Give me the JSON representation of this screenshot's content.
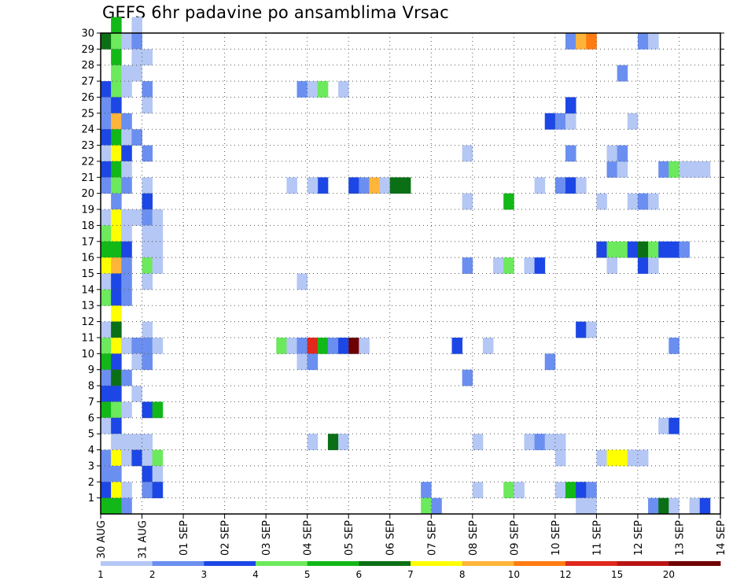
{
  "chart_data": {
    "type": "heatmap",
    "title": "GEFS 6hr padavine po ansamblima Vrsac",
    "xlabel": "",
    "ylabel": "",
    "y_range": [
      0,
      30
    ],
    "y_tick_labels": [
      "1",
      "2",
      "3",
      "4",
      "5",
      "6",
      "7",
      "8",
      "9",
      "10",
      "11",
      "12",
      "13",
      "14",
      "15",
      "16",
      "17",
      "18",
      "19",
      "20",
      "21",
      "22",
      "23",
      "24",
      "25",
      "26",
      "27",
      "28",
      "29",
      "30"
    ],
    "x_tick_labels": [
      "30 AUG",
      "31 AUG",
      "01 SEP",
      "02 SEP",
      "03 SEP",
      "04 SEP",
      "05 SEP",
      "06 SEP",
      "07 SEP",
      "08 SEP",
      "09 SEP",
      "10 SEP",
      "11 SEP",
      "12 SEP",
      "13 SEP",
      "14 SEP"
    ],
    "x_range_days": [
      0,
      15
    ],
    "grid": true,
    "legend": {
      "placement": "bottom",
      "boundaries": [
        "1",
        "2",
        "3",
        "4",
        "5",
        "6",
        "7",
        "8",
        "10",
        "12",
        "15",
        "20"
      ],
      "colors": [
        "#b4c7f5",
        "#6b8ff0",
        "#1c47e6",
        "#6ce95c",
        "#12b817",
        "#0b7015",
        "#ffff00",
        "#ffb43a",
        "#ff7c11",
        "#e0281c",
        "#b81414",
        "#6e0000"
      ]
    },
    "cells": [
      {
        "d": 0.25,
        "m": 30,
        "c": 4
      },
      {
        "d": 0.75,
        "m": 30,
        "c": 0
      },
      {
        "d": 0.0,
        "m": 29,
        "c": 5
      },
      {
        "d": 0.25,
        "m": 29,
        "c": 3
      },
      {
        "d": 0.5,
        "m": 29,
        "c": 0
      },
      {
        "d": 0.75,
        "m": 29,
        "c": 1
      },
      {
        "d": 0.25,
        "m": 28,
        "c": 4
      },
      {
        "d": 0.75,
        "m": 28,
        "c": 0
      },
      {
        "d": 1.0,
        "m": 28,
        "c": 0
      },
      {
        "d": 0.25,
        "m": 27,
        "c": 3
      },
      {
        "d": 0.5,
        "m": 27,
        "c": 0
      },
      {
        "d": 0.75,
        "m": 27,
        "c": 0
      },
      {
        "d": 0.0,
        "m": 26,
        "c": 2
      },
      {
        "d": 0.25,
        "m": 26,
        "c": 3
      },
      {
        "d": 0.5,
        "m": 26,
        "c": 0
      },
      {
        "d": 1.0,
        "m": 26,
        "c": 1
      },
      {
        "d": 0.0,
        "m": 25,
        "c": 1
      },
      {
        "d": 0.25,
        "m": 25,
        "c": 2
      },
      {
        "d": 1.0,
        "m": 25,
        "c": 0
      },
      {
        "d": 0.0,
        "m": 24,
        "c": 1
      },
      {
        "d": 0.25,
        "m": 24,
        "c": 7
      },
      {
        "d": 0.5,
        "m": 24,
        "c": 1
      },
      {
        "d": 0.0,
        "m": 23,
        "c": 2
      },
      {
        "d": 0.25,
        "m": 23,
        "c": 4
      },
      {
        "d": 0.5,
        "m": 23,
        "c": 0
      },
      {
        "d": 0.75,
        "m": 23,
        "c": 1
      },
      {
        "d": 0.0,
        "m": 22,
        "c": 0
      },
      {
        "d": 0.25,
        "m": 22,
        "c": 6
      },
      {
        "d": 0.5,
        "m": 22,
        "c": 2
      },
      {
        "d": 1.0,
        "m": 22,
        "c": 1
      },
      {
        "d": 0.0,
        "m": 21,
        "c": 2
      },
      {
        "d": 0.25,
        "m": 21,
        "c": 4
      },
      {
        "d": 0.5,
        "m": 21,
        "c": 0
      },
      {
        "d": 0.0,
        "m": 20,
        "c": 1
      },
      {
        "d": 0.25,
        "m": 20,
        "c": 3
      },
      {
        "d": 0.5,
        "m": 20,
        "c": 1
      },
      {
        "d": 1.0,
        "m": 20,
        "c": 0
      },
      {
        "d": 0.25,
        "m": 19,
        "c": 1
      },
      {
        "d": 1.0,
        "m": 19,
        "c": 2
      },
      {
        "d": 0.0,
        "m": 18,
        "c": 0
      },
      {
        "d": 0.25,
        "m": 18,
        "c": 6
      },
      {
        "d": 0.5,
        "m": 18,
        "c": 0
      },
      {
        "d": 0.75,
        "m": 18,
        "c": 0
      },
      {
        "d": 1.0,
        "m": 18,
        "c": 1
      },
      {
        "d": 1.25,
        "m": 18,
        "c": 0
      },
      {
        "d": 0.0,
        "m": 17,
        "c": 3
      },
      {
        "d": 0.25,
        "m": 17,
        "c": 6
      },
      {
        "d": 0.5,
        "m": 17,
        "c": 0
      },
      {
        "d": 1.0,
        "m": 17,
        "c": 0
      },
      {
        "d": 1.25,
        "m": 17,
        "c": 0
      },
      {
        "d": 0.0,
        "m": 16,
        "c": 4
      },
      {
        "d": 0.25,
        "m": 16,
        "c": 4
      },
      {
        "d": 0.5,
        "m": 16,
        "c": 2
      },
      {
        "d": 1.0,
        "m": 16,
        "c": 0
      },
      {
        "d": 1.25,
        "m": 16,
        "c": 0
      },
      {
        "d": 0.0,
        "m": 15,
        "c": 6
      },
      {
        "d": 0.25,
        "m": 15,
        "c": 7
      },
      {
        "d": 0.5,
        "m": 15,
        "c": 1
      },
      {
        "d": 1.0,
        "m": 15,
        "c": 3
      },
      {
        "d": 1.25,
        "m": 15,
        "c": 0
      },
      {
        "d": 0.0,
        "m": 14,
        "c": 0
      },
      {
        "d": 0.25,
        "m": 14,
        "c": 2
      },
      {
        "d": 0.5,
        "m": 14,
        "c": 1
      },
      {
        "d": 1.0,
        "m": 14,
        "c": 0
      },
      {
        "d": 0.0,
        "m": 13,
        "c": 3
      },
      {
        "d": 0.25,
        "m": 13,
        "c": 2
      },
      {
        "d": 0.5,
        "m": 13,
        "c": 1
      },
      {
        "d": 0.25,
        "m": 12,
        "c": 6
      },
      {
        "d": 0.0,
        "m": 11,
        "c": 0
      },
      {
        "d": 0.25,
        "m": 11,
        "c": 5
      },
      {
        "d": 1.0,
        "m": 11,
        "c": 0
      },
      {
        "d": 0.0,
        "m": 10,
        "c": 3
      },
      {
        "d": 0.25,
        "m": 10,
        "c": 6
      },
      {
        "d": 0.5,
        "m": 10,
        "c": 0
      },
      {
        "d": 0.75,
        "m": 10,
        "c": 1
      },
      {
        "d": 1.0,
        "m": 10,
        "c": 1
      },
      {
        "d": 1.25,
        "m": 10,
        "c": 0
      },
      {
        "d": 0.0,
        "m": 9,
        "c": 4
      },
      {
        "d": 0.25,
        "m": 9,
        "c": 2
      },
      {
        "d": 0.75,
        "m": 9,
        "c": 0
      },
      {
        "d": 1.0,
        "m": 9,
        "c": 1
      },
      {
        "d": 0.0,
        "m": 8,
        "c": 1
      },
      {
        "d": 0.25,
        "m": 8,
        "c": 5
      },
      {
        "d": 0.5,
        "m": 8,
        "c": 1
      },
      {
        "d": 0.0,
        "m": 7,
        "c": 2
      },
      {
        "d": 0.25,
        "m": 7,
        "c": 2
      },
      {
        "d": 0.75,
        "m": 7,
        "c": 0
      },
      {
        "d": 0.0,
        "m": 6,
        "c": 4
      },
      {
        "d": 0.25,
        "m": 6,
        "c": 3
      },
      {
        "d": 0.5,
        "m": 6,
        "c": 0
      },
      {
        "d": 1.0,
        "m": 6,
        "c": 2
      },
      {
        "d": 1.25,
        "m": 6,
        "c": 4
      },
      {
        "d": 0.0,
        "m": 5,
        "c": 0
      },
      {
        "d": 0.25,
        "m": 5,
        "c": 2
      },
      {
        "d": 0.25,
        "m": 4,
        "c": 0
      },
      {
        "d": 0.5,
        "m": 4,
        "c": 0
      },
      {
        "d": 0.75,
        "m": 4,
        "c": 0
      },
      {
        "d": 1.0,
        "m": 4,
        "c": 0
      },
      {
        "d": 0.0,
        "m": 3,
        "c": 1
      },
      {
        "d": 0.25,
        "m": 3,
        "c": 6
      },
      {
        "d": 0.5,
        "m": 3,
        "c": 0
      },
      {
        "d": 0.75,
        "m": 3,
        "c": 2
      },
      {
        "d": 1.0,
        "m": 3,
        "c": 0
      },
      {
        "d": 1.25,
        "m": 3,
        "c": 3
      },
      {
        "d": 0.0,
        "m": 2,
        "c": 1
      },
      {
        "d": 0.25,
        "m": 2,
        "c": 1
      },
      {
        "d": 1.0,
        "m": 2,
        "c": 2
      },
      {
        "d": 1.25,
        "m": 2,
        "c": 0
      },
      {
        "d": 0.0,
        "m": 1,
        "c": 2
      },
      {
        "d": 0.25,
        "m": 1,
        "c": 6
      },
      {
        "d": 0.5,
        "m": 1,
        "c": 0
      },
      {
        "d": 1.0,
        "m": 1,
        "c": 1
      },
      {
        "d": 1.25,
        "m": 1,
        "c": 2
      },
      {
        "d": 0.0,
        "m": 0,
        "c": 4
      },
      {
        "d": 0.25,
        "m": 0,
        "c": 4
      },
      {
        "d": 0.5,
        "m": 0,
        "c": 1
      },
      {
        "d": 4.75,
        "m": 26,
        "c": 1
      },
      {
        "d": 5.0,
        "m": 26,
        "c": 0
      },
      {
        "d": 5.25,
        "m": 26,
        "c": 3
      },
      {
        "d": 5.75,
        "m": 26,
        "c": 0
      },
      {
        "d": 5.25,
        "m": 20,
        "c": 2
      },
      {
        "d": 5.0,
        "m": 20,
        "c": 0
      },
      {
        "d": 4.5,
        "m": 20,
        "c": 0
      },
      {
        "d": 6.0,
        "m": 20,
        "c": 2
      },
      {
        "d": 6.25,
        "m": 20,
        "c": 1
      },
      {
        "d": 6.5,
        "m": 20,
        "c": 7
      },
      {
        "d": 6.75,
        "m": 20,
        "c": 0
      },
      {
        "d": 7.0,
        "m": 20,
        "c": 5
      },
      {
        "d": 7.25,
        "m": 20,
        "c": 5
      },
      {
        "d": 4.75,
        "m": 14,
        "c": 0
      },
      {
        "d": 4.25,
        "m": 10,
        "c": 3
      },
      {
        "d": 4.5,
        "m": 10,
        "c": 0
      },
      {
        "d": 4.75,
        "m": 10,
        "c": 1
      },
      {
        "d": 5.0,
        "m": 10,
        "c": 9
      },
      {
        "d": 5.25,
        "m": 10,
        "c": 4
      },
      {
        "d": 5.5,
        "m": 10,
        "c": 1
      },
      {
        "d": 5.75,
        "m": 10,
        "c": 2
      },
      {
        "d": 6.0,
        "m": 10,
        "c": 11
      },
      {
        "d": 6.25,
        "m": 10,
        "c": 0
      },
      {
        "d": 4.75,
        "m": 9,
        "c": 0
      },
      {
        "d": 5.0,
        "m": 9,
        "c": 1
      },
      {
        "d": 5.0,
        "m": 4,
        "c": 0
      },
      {
        "d": 5.5,
        "m": 4,
        "c": 5
      },
      {
        "d": 5.75,
        "m": 4,
        "c": 0
      },
      {
        "d": 7.75,
        "m": 1,
        "c": 1
      },
      {
        "d": 8.0,
        "m": 0,
        "c": 1
      },
      {
        "d": 7.75,
        "m": 0,
        "c": 3
      },
      {
        "d": 8.75,
        "m": 22,
        "c": 0
      },
      {
        "d": 8.75,
        "m": 19,
        "c": 0
      },
      {
        "d": 8.75,
        "m": 15,
        "c": 1
      },
      {
        "d": 8.5,
        "m": 10,
        "c": 2
      },
      {
        "d": 8.75,
        "m": 8,
        "c": 1
      },
      {
        "d": 9.0,
        "m": 4,
        "c": 0
      },
      {
        "d": 9.0,
        "m": 1,
        "c": 0
      },
      {
        "d": 9.25,
        "m": 10,
        "c": 0
      },
      {
        "d": 9.5,
        "m": 15,
        "c": 0
      },
      {
        "d": 9.75,
        "m": 15,
        "c": 3
      },
      {
        "d": 9.75,
        "m": 19,
        "c": 4
      },
      {
        "d": 9.75,
        "m": 1,
        "c": 3
      },
      {
        "d": 10.0,
        "m": 1,
        "c": 0
      },
      {
        "d": 10.25,
        "m": 15,
        "c": 0
      },
      {
        "d": 10.5,
        "m": 15,
        "c": 2
      },
      {
        "d": 10.5,
        "m": 20,
        "c": 0
      },
      {
        "d": 10.25,
        "m": 4,
        "c": 0
      },
      {
        "d": 10.5,
        "m": 4,
        "c": 1
      },
      {
        "d": 10.75,
        "m": 4,
        "c": 0
      },
      {
        "d": 11.0,
        "m": 4,
        "c": 0
      },
      {
        "d": 11.0,
        "m": 3,
        "c": 0
      },
      {
        "d": 10.75,
        "m": 9,
        "c": 1
      },
      {
        "d": 10.75,
        "m": 24,
        "c": 2
      },
      {
        "d": 11.0,
        "m": 24,
        "c": 1
      },
      {
        "d": 11.25,
        "m": 24,
        "c": 0
      },
      {
        "d": 11.25,
        "m": 25,
        "c": 2
      },
      {
        "d": 11.0,
        "m": 20,
        "c": 1
      },
      {
        "d": 11.25,
        "m": 20,
        "c": 2
      },
      {
        "d": 11.5,
        "m": 20,
        "c": 0
      },
      {
        "d": 11.25,
        "m": 22,
        "c": 1
      },
      {
        "d": 11.25,
        "m": 29,
        "c": 1
      },
      {
        "d": 11.5,
        "m": 29,
        "c": 7
      },
      {
        "d": 11.75,
        "m": 29,
        "c": 8
      },
      {
        "d": 11.5,
        "m": 11,
        "c": 2
      },
      {
        "d": 11.75,
        "m": 11,
        "c": 0
      },
      {
        "d": 11.0,
        "m": 1,
        "c": 0
      },
      {
        "d": 11.25,
        "m": 1,
        "c": 4
      },
      {
        "d": 11.5,
        "m": 1,
        "c": 2
      },
      {
        "d": 11.75,
        "m": 1,
        "c": 1
      },
      {
        "d": 11.5,
        "m": 0,
        "c": 0
      },
      {
        "d": 11.75,
        "m": 0,
        "c": 0
      },
      {
        "d": 12.0,
        "m": 16,
        "c": 2
      },
      {
        "d": 12.25,
        "m": 16,
        "c": 3
      },
      {
        "d": 12.5,
        "m": 16,
        "c": 3
      },
      {
        "d": 12.0,
        "m": 19,
        "c": 0
      },
      {
        "d": 12.0,
        "m": 3,
        "c": 0
      },
      {
        "d": 12.25,
        "m": 3,
        "c": 6
      },
      {
        "d": 12.5,
        "m": 3,
        "c": 6
      },
      {
        "d": 12.75,
        "m": 3,
        "c": 0
      },
      {
        "d": 13.0,
        "m": 3,
        "c": 0
      },
      {
        "d": 12.25,
        "m": 15,
        "c": 0
      },
      {
        "d": 12.25,
        "m": 21,
        "c": 1
      },
      {
        "d": 12.25,
        "m": 22,
        "c": 0
      },
      {
        "d": 12.5,
        "m": 21,
        "c": 0
      },
      {
        "d": 12.5,
        "m": 22,
        "c": 1
      },
      {
        "d": 12.5,
        "m": 27,
        "c": 1
      },
      {
        "d": 12.75,
        "m": 16,
        "c": 2
      },
      {
        "d": 13.0,
        "m": 16,
        "c": 5
      },
      {
        "d": 13.25,
        "m": 16,
        "c": 3
      },
      {
        "d": 13.5,
        "m": 16,
        "c": 2
      },
      {
        "d": 13.75,
        "m": 16,
        "c": 2
      },
      {
        "d": 14.0,
        "m": 16,
        "c": 1
      },
      {
        "d": 12.75,
        "m": 24,
        "c": 0
      },
      {
        "d": 12.75,
        "m": 19,
        "c": 0
      },
      {
        "d": 13.0,
        "m": 19,
        "c": 1
      },
      {
        "d": 13.25,
        "m": 19,
        "c": 0
      },
      {
        "d": 13.0,
        "m": 15,
        "c": 2
      },
      {
        "d": 13.25,
        "m": 15,
        "c": 0
      },
      {
        "d": 13.0,
        "m": 29,
        "c": 1
      },
      {
        "d": 13.25,
        "m": 29,
        "c": 0
      },
      {
        "d": 13.5,
        "m": 21,
        "c": 1
      },
      {
        "d": 13.75,
        "m": 21,
        "c": 3
      },
      {
        "d": 14.0,
        "m": 21,
        "c": 0
      },
      {
        "d": 14.25,
        "m": 21,
        "c": 0
      },
      {
        "d": 14.5,
        "m": 21,
        "c": 0
      },
      {
        "d": 13.75,
        "m": 10,
        "c": 1
      },
      {
        "d": 13.5,
        "m": 5,
        "c": 0
      },
      {
        "d": 13.75,
        "m": 5,
        "c": 2
      },
      {
        "d": 13.25,
        "m": 0,
        "c": 1
      },
      {
        "d": 13.5,
        "m": 0,
        "c": 5
      },
      {
        "d": 13.75,
        "m": 0,
        "c": 0
      },
      {
        "d": 14.25,
        "m": 0,
        "c": 0
      },
      {
        "d": 14.5,
        "m": 0,
        "c": 2
      }
    ]
  }
}
